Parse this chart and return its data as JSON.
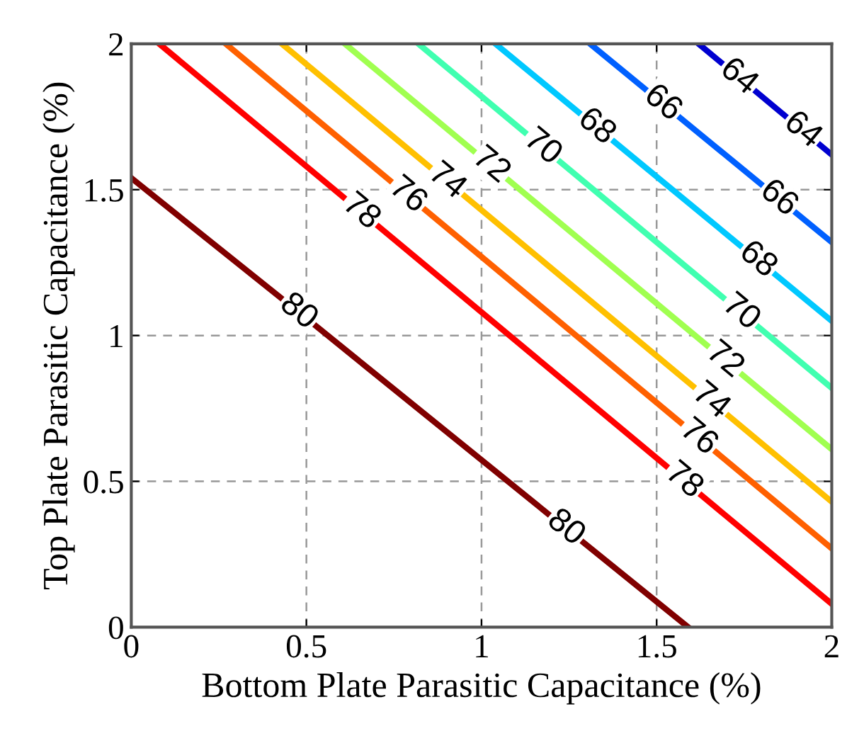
{
  "chart_data": {
    "type": "line",
    "xlabel": "Bottom Plate Parasitic Capacitance (%)",
    "ylabel": "Top Plate Parasitic Capacitance (%)",
    "xlim": [
      0,
      2
    ],
    "ylim": [
      0,
      2
    ],
    "xticks": [
      0,
      0.5,
      1,
      1.5,
      2
    ],
    "yticks": [
      0,
      0.5,
      1,
      1.5,
      2
    ],
    "grid": true,
    "marker": "none",
    "line_style": "solid",
    "series": [
      {
        "name": "80",
        "color": "#800000",
        "x": [
          0,
          0.53,
          1.59
        ],
        "values": [
          1.54,
          1.03,
          0
        ]
      },
      {
        "name": "78",
        "color": "#ff0000",
        "x": [
          0.08,
          2
        ],
        "values": [
          2,
          0.08
        ]
      },
      {
        "name": "76",
        "color": "#ff6000",
        "x": [
          0.27,
          2
        ],
        "values": [
          2,
          0.27
        ]
      },
      {
        "name": "74",
        "color": "#ffc000",
        "x": [
          0.43,
          2
        ],
        "values": [
          2,
          0.43
        ]
      },
      {
        "name": "72",
        "color": "#a0ff50",
        "x": [
          0.61,
          2
        ],
        "values": [
          2,
          0.61
        ]
      },
      {
        "name": "70",
        "color": "#40ffb0",
        "x": [
          0.82,
          2
        ],
        "values": [
          2,
          0.82
        ]
      },
      {
        "name": "68",
        "color": "#00c8ff",
        "x": [
          1.04,
          2
        ],
        "values": [
          2,
          1.05
        ]
      },
      {
        "name": "66",
        "color": "#0060ff",
        "x": [
          1.31,
          2
        ],
        "values": [
          2,
          1.32
        ]
      },
      {
        "name": "64",
        "color": "#0000d0",
        "x": [
          1.62,
          2
        ],
        "values": [
          2,
          1.62
        ]
      }
    ]
  }
}
